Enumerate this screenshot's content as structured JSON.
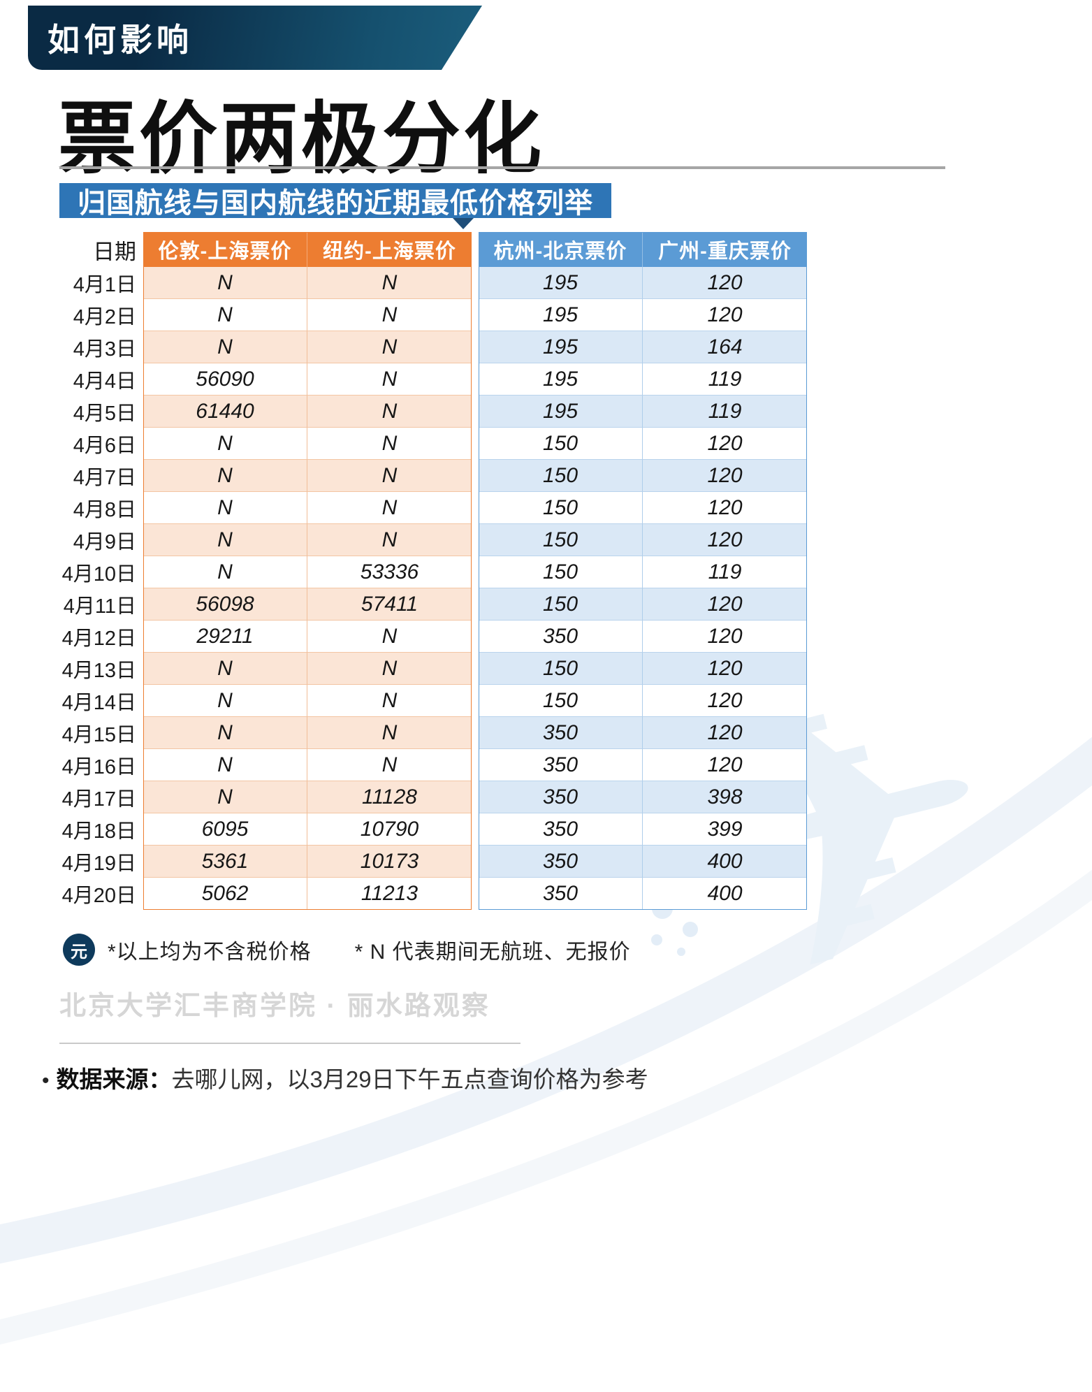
{
  "banner": {
    "label": "如何影响"
  },
  "title": "票价两极分化",
  "subtitle": "归国航线与国内航线的近期最低价格列举",
  "chart_data": {
    "type": "table",
    "title": "归国航线与国内航线的近期最低价格列举",
    "row_header": "日期",
    "columns": [
      "伦敦-上海票价",
      "纽约-上海票价",
      "杭州-北京票价",
      "广州-重庆票价"
    ],
    "column_groups": [
      "归国航线",
      "国内航线"
    ],
    "dates": [
      "4月1日",
      "4月2日",
      "4月3日",
      "4月4日",
      "4月5日",
      "4月6日",
      "4月7日",
      "4月8日",
      "4月9日",
      "4月10日",
      "4月11日",
      "4月12日",
      "4月13日",
      "4月14日",
      "4月15日",
      "4月16日",
      "4月17日",
      "4月18日",
      "4月19日",
      "4月20日"
    ],
    "rows": [
      [
        "N",
        "N",
        "195",
        "120"
      ],
      [
        "N",
        "N",
        "195",
        "120"
      ],
      [
        "N",
        "N",
        "195",
        "164"
      ],
      [
        "56090",
        "N",
        "195",
        "119"
      ],
      [
        "61440",
        "N",
        "195",
        "119"
      ],
      [
        "N",
        "N",
        "150",
        "120"
      ],
      [
        "N",
        "N",
        "150",
        "120"
      ],
      [
        "N",
        "N",
        "150",
        "120"
      ],
      [
        "N",
        "N",
        "150",
        "120"
      ],
      [
        "N",
        "53336",
        "150",
        "119"
      ],
      [
        "56098",
        "57411",
        "150",
        "120"
      ],
      [
        "29211",
        "N",
        "350",
        "120"
      ],
      [
        "N",
        "N",
        "150",
        "120"
      ],
      [
        "N",
        "N",
        "150",
        "120"
      ],
      [
        "N",
        "N",
        "350",
        "120"
      ],
      [
        "N",
        "N",
        "350",
        "120"
      ],
      [
        "N",
        "11128",
        "350",
        "398"
      ],
      [
        "6095",
        "10790",
        "350",
        "399"
      ],
      [
        "5361",
        "10173",
        "350",
        "400"
      ],
      [
        "5062",
        "11213",
        "350",
        "400"
      ]
    ],
    "value_note": "N 代表期间无航班、无报价"
  },
  "footnote": {
    "icon": "元",
    "text": "*以上均为不含税价格　　* N 代表期间无航班、无报价"
  },
  "watermark_text": "北京大学汇丰商学院 · 丽水路观察",
  "source": {
    "bullet": "•",
    "label": "数据来源：",
    "text": "去哪儿网，以3月29日下午五点查询价格为参考"
  },
  "colors": {
    "banner_dark": "#0a2a44",
    "banner_teal": "#1b5d7c",
    "subtitle_bg": "#2e75b6",
    "intl_header": "#ed7d31",
    "intl_tint": "#fbe5d6",
    "domestic_header": "#5b9bd5",
    "domestic_tint": "#dae8f6",
    "yuan_badge": "#0e3a5c"
  }
}
